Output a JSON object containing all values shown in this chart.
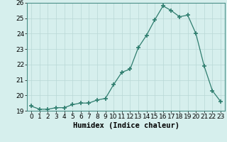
{
  "x": [
    0,
    1,
    2,
    3,
    4,
    5,
    6,
    7,
    8,
    9,
    10,
    11,
    12,
    13,
    14,
    15,
    16,
    17,
    18,
    19,
    20,
    21,
    22,
    23
  ],
  "y": [
    19.3,
    19.1,
    19.1,
    19.2,
    19.2,
    19.4,
    19.5,
    19.5,
    19.7,
    19.8,
    20.7,
    21.5,
    21.7,
    23.1,
    23.9,
    24.9,
    25.8,
    25.5,
    25.1,
    25.2,
    24.0,
    21.9,
    20.3,
    19.6
  ],
  "line_color": "#2e7d6e",
  "marker": "+",
  "marker_size": 4,
  "bg_color": "#d6efed",
  "grid_color": "#b8d8d5",
  "xlabel": "Humidex (Indice chaleur)",
  "ylim": [
    19,
    26
  ],
  "yticks": [
    19,
    20,
    21,
    22,
    23,
    24,
    25,
    26
  ],
  "xticks": [
    0,
    1,
    2,
    3,
    4,
    5,
    6,
    7,
    8,
    9,
    10,
    11,
    12,
    13,
    14,
    15,
    16,
    17,
    18,
    19,
    20,
    21,
    22,
    23
  ],
  "tick_fontsize": 6.5,
  "xlabel_fontsize": 7.5
}
